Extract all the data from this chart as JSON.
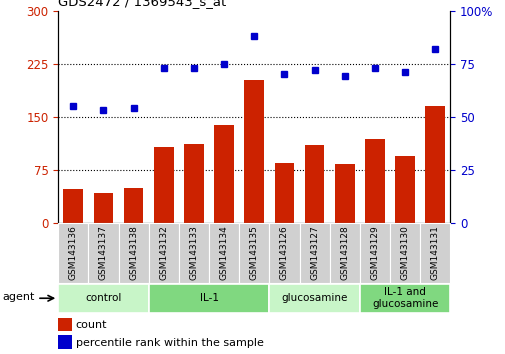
{
  "title": "GDS2472 / 1369543_s_at",
  "samples": [
    "GSM143136",
    "GSM143137",
    "GSM143138",
    "GSM143132",
    "GSM143133",
    "GSM143134",
    "GSM143135",
    "GSM143126",
    "GSM143127",
    "GSM143128",
    "GSM143129",
    "GSM143130",
    "GSM143131"
  ],
  "counts": [
    48,
    43,
    49,
    108,
    112,
    138,
    202,
    85,
    110,
    83,
    118,
    95,
    165
  ],
  "percentiles": [
    55,
    53,
    54,
    73,
    73,
    75,
    88,
    70,
    72,
    69,
    73,
    71,
    82
  ],
  "groups": [
    {
      "label": "control",
      "indices": [
        0,
        1,
        2
      ],
      "color": "#c8f5c8"
    },
    {
      "label": "IL-1",
      "indices": [
        3,
        4,
        5,
        6
      ],
      "color": "#80d880"
    },
    {
      "label": "glucosamine",
      "indices": [
        7,
        8,
        9
      ],
      "color": "#c8f5c8"
    },
    {
      "label": "IL-1 and\nglucosamine",
      "indices": [
        10,
        11,
        12
      ],
      "color": "#80d880"
    }
  ],
  "bar_color": "#cc2200",
  "dot_color": "#0000cc",
  "left_ylim": [
    0,
    300
  ],
  "right_ylim": [
    0,
    100
  ],
  "left_yticks": [
    0,
    75,
    150,
    225,
    300
  ],
  "right_yticks": [
    0,
    25,
    50,
    75,
    100
  ],
  "hlines": [
    75,
    150,
    225
  ],
  "tick_label_color_left": "#cc2200",
  "tick_label_color_right": "#0000cc",
  "agent_label": "agent",
  "legend_count": "count",
  "legend_pct": "percentile rank within the sample",
  "background_color": "#ffffff",
  "ticklabel_bg": "#d0d0d0"
}
